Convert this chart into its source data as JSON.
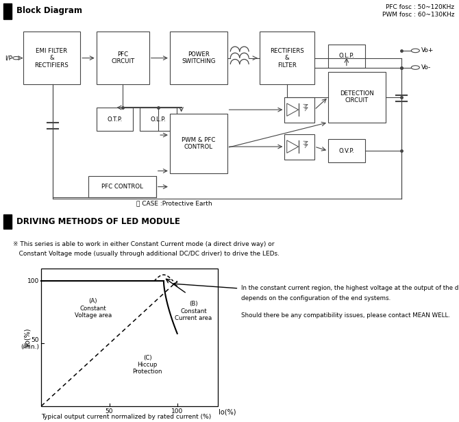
{
  "title_block": "Block Diagram",
  "title_driving": "DRIVING METHODS OF LED MODULE",
  "freq_text": "PFC fosc : 50~120KHz\nPWM fosc : 60~130KHz",
  "note1": "※ This series is able to work in either Constant Current mode (a direct drive way) or",
  "note2": "   Constant Voltage mode (usually through additional DC/DC driver) to drive the LEDs.",
  "rtext1": "In the constant current region, the highest voltage at the output of the driver",
  "rtext2": "depends on the configuration of the end systems.",
  "rtext3": "Should there be any compatibility issues, please contact MEAN WELL.",
  "caption": "Typical output current normalized by rated current (%)",
  "label_a": "(A)\nConstant\nVoltage area",
  "label_b": "(B)\nConstant\nCurrent area",
  "label_c": "(C)\nHiccup\nProtection",
  "bg": "#ffffff",
  "lc": "#444444",
  "ec": "#444444"
}
